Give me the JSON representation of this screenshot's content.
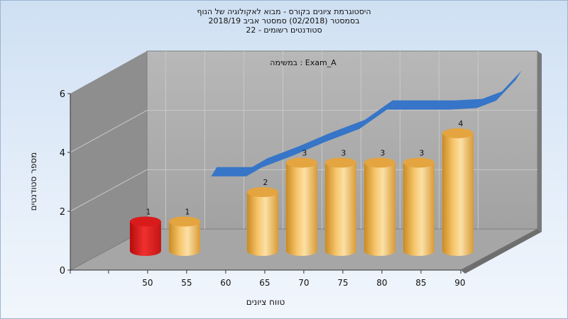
{
  "title_lines": [
    "היסטוגרמת ציונים בקורס - מבוא לאקולוגיה של הנוף",
    "בסמסטר  (02/2018)  סמסטר אביב 2018/19",
    "סטודנטים רשומים - 22"
  ],
  "chart_data": {
    "type": "bar",
    "series": [
      {
        "name": "",
        "x": [
          50,
          55,
          60,
          65,
          70,
          75,
          80,
          85,
          90
        ],
        "values": [
          1,
          1,
          0,
          2,
          3,
          3,
          3,
          3,
          4
        ],
        "highlight_index": 0
      }
    ],
    "trend_line": [
      [
        55.5,
        1.8
      ],
      [
        60,
        1.8
      ],
      [
        62,
        2.1
      ],
      [
        66,
        2.5
      ],
      [
        70,
        2.95
      ],
      [
        74.5,
        3.4
      ],
      [
        78,
        4.05
      ],
      [
        81,
        4.05
      ],
      [
        86,
        4.05
      ],
      [
        89.5,
        4.1
      ],
      [
        92,
        4.35
      ],
      [
        94.5,
        5.05
      ]
    ],
    "xlabel": "טווח ציונים",
    "ylabel": "מספר סטודנטים",
    "ylim": [
      0,
      6
    ],
    "yticks": [
      0,
      2,
      4,
      6
    ],
    "xtick_labels": [
      "50",
      "55",
      "60",
      "65",
      "70",
      "75",
      "80",
      "85",
      "90"
    ],
    "annotation": "במשימה : Exam_A",
    "colors": {
      "bar": "#f2bd5e",
      "highlight": "#e52121",
      "trend": "#2f72c8",
      "back_wall": "#ababab",
      "side_wall": "#8e8e8e",
      "floor": "#a6a6a6"
    },
    "grid": true
  }
}
